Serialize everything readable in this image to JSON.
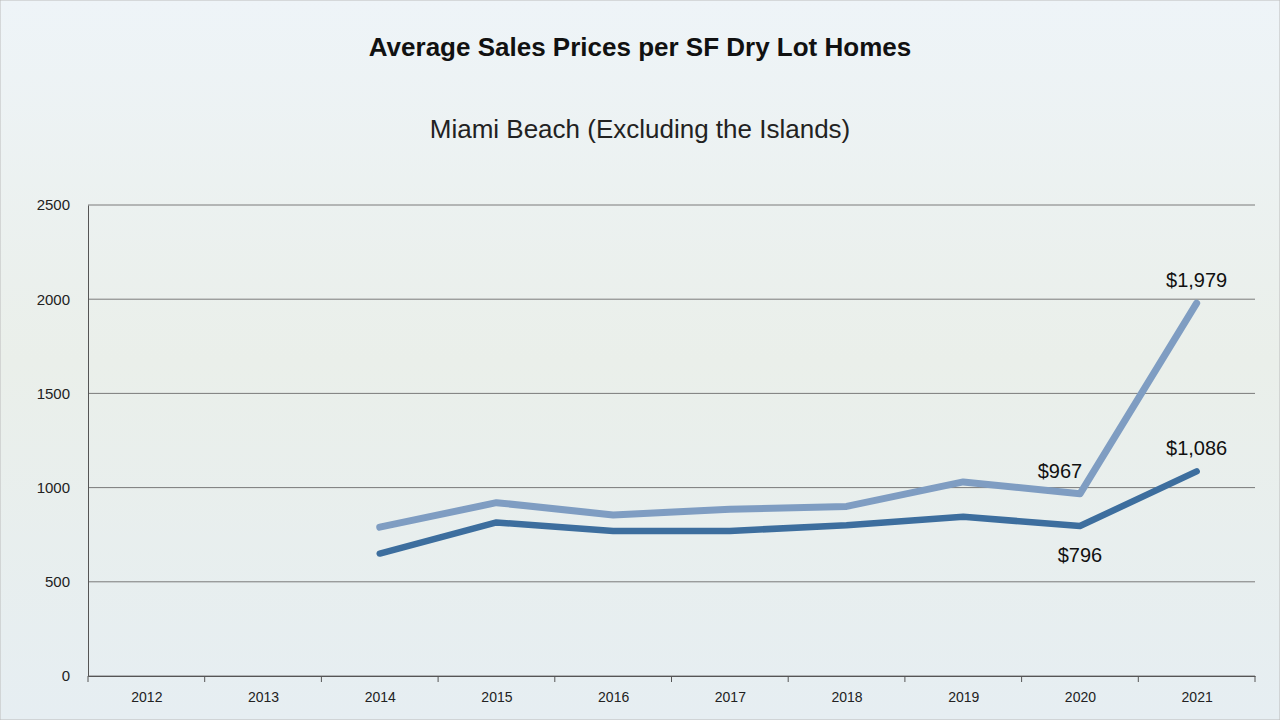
{
  "chart_data": {
    "type": "line",
    "title": "Average Sales Prices per SF  Dry Lot Homes",
    "subtitle": "Miami Beach (Excluding the Islands)",
    "categories": [
      "2012",
      "2013",
      "2014",
      "2015",
      "2016",
      "2017",
      "2018",
      "2019",
      "2020",
      "2021"
    ],
    "series": [
      {
        "color": "#7f9dc2",
        "values": [
          null,
          null,
          790,
          920,
          855,
          885,
          900,
          1030,
          967,
          1979
        ],
        "value_labels": [
          null,
          null,
          null,
          null,
          null,
          null,
          null,
          null,
          "$967",
          "$1,979"
        ]
      },
      {
        "color": "#3d6e9e",
        "values": [
          null,
          null,
          650,
          815,
          770,
          770,
          800,
          845,
          796,
          1086
        ],
        "value_labels": [
          null,
          null,
          null,
          null,
          null,
          null,
          null,
          null,
          "$796",
          "$1,086"
        ]
      }
    ],
    "ylim": [
      0,
      2500
    ],
    "yticks": [
      0,
      500,
      1000,
      1500,
      2000,
      2500
    ],
    "grid": true,
    "data_labels": true
  }
}
